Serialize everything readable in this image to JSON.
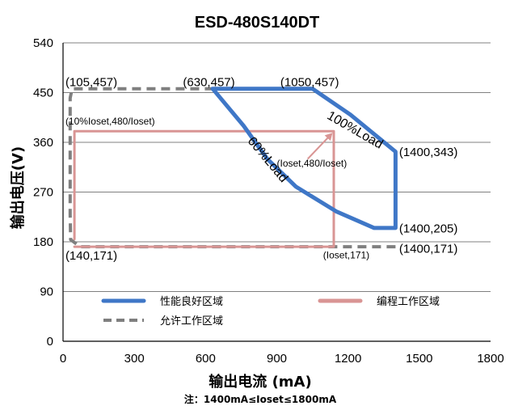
{
  "chart_data": {
    "type": "line",
    "title": "ESD-480S140DT",
    "xlabel": "输出电流 (mA)",
    "ylabel": "输出电压(V)",
    "note": "注：1400mA≤Ioset≤1800mA",
    "xlim": [
      0,
      1800
    ],
    "ylim": [
      0,
      540
    ],
    "xticks": [
      0,
      300,
      600,
      900,
      1200,
      1500,
      1800
    ],
    "yticks": [
      0,
      90,
      180,
      270,
      360,
      450,
      540
    ],
    "grid": "horizontal",
    "legend_position": "bottom-inside",
    "series": [
      {
        "name": "性能良好区域",
        "color": "#3f77c7",
        "style": "solid",
        "points": [
          [
            630,
            457
          ],
          [
            1050,
            457
          ],
          [
            1210,
            410
          ],
          [
            1400,
            343
          ],
          [
            1400,
            205
          ],
          [
            1310,
            205
          ],
          [
            1150,
            235
          ],
          [
            980,
            280
          ],
          [
            860,
            330
          ],
          [
            760,
            390
          ],
          [
            630,
            457
          ]
        ]
      },
      {
        "name": "编程工作区域",
        "color": "#d99594",
        "style": "solid",
        "points": [
          [
            48,
            171
          ],
          [
            1140,
            171
          ],
          [
            1140,
            380
          ],
          [
            48,
            380
          ],
          [
            48,
            185
          ]
        ]
      },
      {
        "name": "允许工作区域",
        "color": "#7f7f7f",
        "style": "dashed",
        "points": [
          [
            1400,
            171
          ],
          [
            72,
            171
          ],
          [
            32,
            184
          ],
          [
            30,
            230
          ],
          [
            30,
            440
          ],
          [
            38,
            457
          ],
          [
            630,
            457
          ]
        ]
      }
    ],
    "annotations": {
      "p_105_457": "(105,457)",
      "p_630_457": "(630,457)",
      "p_1050_457": "(1050,457)",
      "p_1400_343": "(1400,343)",
      "p_1400_205": "(1400,205)",
      "p_1400_171": "(1400,171)",
      "p_140_171": "(140,171)",
      "p_ioset_171": "(Ioset,171)",
      "p_10pct": "(10%Ioset,480/Ioset)",
      "p_ioset_480": "(Ioset,480/Ioset)",
      "load_100": "100%Load",
      "load_60": "60%Load"
    },
    "arrow": {
      "from": [
        1030,
        330
      ],
      "to": [
        1130,
        375
      ],
      "color": "#d99594"
    }
  }
}
